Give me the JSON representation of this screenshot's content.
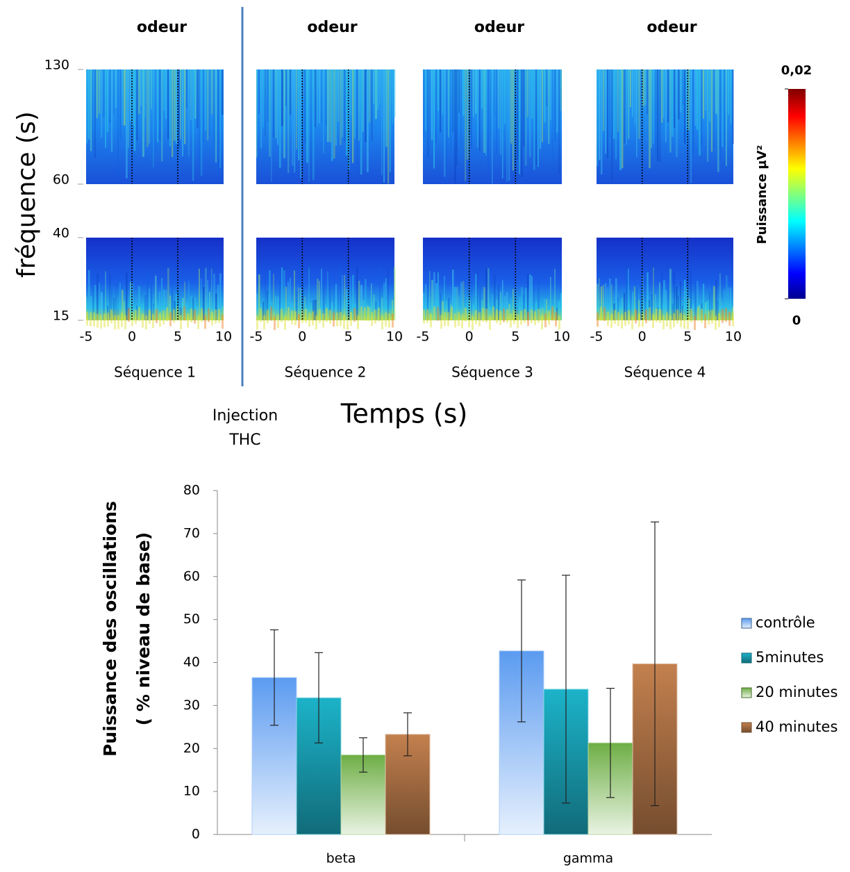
{
  "spectrograms": {
    "panel_titles": [
      "odeur",
      "odeur",
      "odeur",
      "odeur"
    ],
    "sequences": [
      "Séquence 1",
      "Séquence 2",
      "Séquence 3",
      "Séquence 4"
    ],
    "y_label": "fréquence (s)",
    "x_label": "Temps (s)",
    "injection": [
      "Injection",
      "THC"
    ],
    "xlim": [
      -5,
      10
    ],
    "xticks": [
      -5,
      0,
      5,
      10
    ],
    "gamma_ylim": [
      60,
      130
    ],
    "gamma_yticks": [
      60,
      130
    ],
    "beta_ylim": [
      15,
      40
    ],
    "beta_yticks": [
      15,
      40
    ],
    "colorbar": {
      "label": "Puissance µV²",
      "lim": [
        0,
        0.02
      ],
      "ticks": [
        0,
        {
          "value": 0.02,
          "label": "0,02"
        }
      ]
    }
  },
  "chart_data": {
    "type": "bar",
    "y_label": [
      "Puissance des oscillations",
      "( % niveau de base)"
    ],
    "categories": [
      "beta",
      "gamma"
    ],
    "series": [
      {
        "name": "contrôle",
        "color": "#5b9bf0",
        "values": [
          36.5,
          42.7
        ],
        "errors": [
          11.1,
          16.5
        ]
      },
      {
        "name": "5minutes",
        "color": "#1cb3c9",
        "values": [
          31.8,
          33.8
        ],
        "errors": [
          10.5,
          26.5
        ]
      },
      {
        "name": "20 minutes",
        "color": "#6eae45",
        "values": [
          18.5,
          21.3
        ],
        "errors": [
          4,
          12.7
        ]
      },
      {
        "name": "40 minutes",
        "color": "#c3804e",
        "values": [
          23.3,
          39.7
        ],
        "errors": [
          5,
          33
        ]
      }
    ],
    "ylim": [
      0,
      80
    ],
    "yticks": [
      0,
      10,
      20,
      30,
      40,
      50,
      60,
      70,
      80
    ]
  }
}
